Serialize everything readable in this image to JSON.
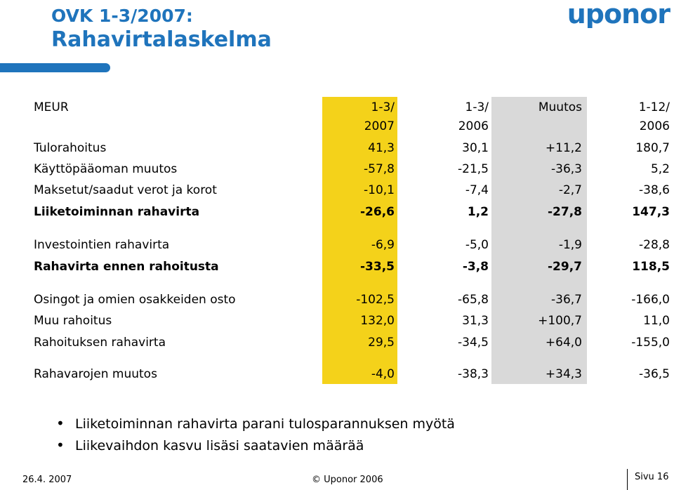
{
  "header": {
    "title_line1": "OVK 1-3/2007:",
    "title_line2": "Rahavirtalaskelma",
    "logo_text": "uponor",
    "accent_color": "#1f74bc"
  },
  "table": {
    "highlight_colors": {
      "current_period": "#f4d21a",
      "change": "#d9d9d9"
    },
    "header": {
      "label": "MEUR",
      "col1_line1": "1-3/",
      "col1_line2": "2007",
      "col2_line1": "1-3/",
      "col2_line2": "2006",
      "col3_line1": "Muutos",
      "col3_line2": "",
      "col4_line1": "1-12/",
      "col4_line2": "2006"
    },
    "rows": [
      {
        "label": "Tulorahoitus",
        "v1": "41,3",
        "v2": "30,1",
        "v3": "+11,2",
        "v4": "180,7",
        "bold": false
      },
      {
        "label": "Käyttöpääoman muutos",
        "v1": "-57,8",
        "v2": "-21,5",
        "v3": "-36,3",
        "v4": "5,2",
        "bold": false
      },
      {
        "label": "Maksetut/saadut verot ja korot",
        "v1": "-10,1",
        "v2": "-7,4",
        "v3": "-2,7",
        "v4": "-38,6",
        "bold": false
      },
      {
        "label": "Liiketoiminnan rahavirta",
        "v1": "-26,6",
        "v2": "1,2",
        "v3": "-27,8",
        "v4": "147,3",
        "bold": true
      },
      {
        "label": "Investointien rahavirta",
        "v1": "-6,9",
        "v2": "-5,0",
        "v3": "-1,9",
        "v4": "-28,8",
        "bold": false
      },
      {
        "label": "Rahavirta ennen rahoitusta",
        "v1": "-33,5",
        "v2": "-3,8",
        "v3": "-29,7",
        "v4": "118,5",
        "bold": true
      },
      {
        "label": "Osingot ja omien osakkeiden osto",
        "v1": "-102,5",
        "v2": "-65,8",
        "v3": "-36,7",
        "v4": "-166,0",
        "bold": false
      },
      {
        "label": "Muu rahoitus",
        "v1": "132,0",
        "v2": "31,3",
        "v3": "+100,7",
        "v4": "11,0",
        "bold": false
      },
      {
        "label": "Rahoituksen rahavirta",
        "v1": "29,5",
        "v2": "-34,5",
        "v3": "+64,0",
        "v4": "-155,0",
        "bold": false
      },
      {
        "label": "Rahavarojen muutos",
        "v1": "-4,0",
        "v2": "-38,3",
        "v3": "+34,3",
        "v4": "-36,5",
        "bold": false
      }
    ]
  },
  "bullets": [
    "Liiketoiminnan rahavirta parani tulosparannuksen myötä",
    "Liikevaihdon kasvu lisäsi saatavien määrää"
  ],
  "footer": {
    "date": "26.4. 2007",
    "copyright": "© Uponor 2006",
    "page": "Sivu 16"
  }
}
